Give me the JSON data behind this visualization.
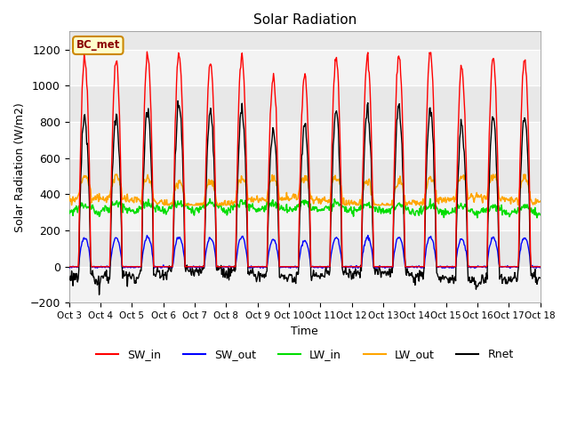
{
  "title": "Solar Radiation",
  "ylabel": "Solar Radiation (W/m2)",
  "xlabel": "Time",
  "ylim": [
    -200,
    1300
  ],
  "yticks": [
    -200,
    0,
    200,
    400,
    600,
    800,
    1000,
    1200
  ],
  "x_tick_labels": [
    "Oct 3",
    "Oct 4",
    "Oct 5",
    "Oct 6",
    "Oct 7",
    "Oct 8",
    "Oct 9",
    "Oct 10",
    "Oct 11",
    "Oct 12",
    "Oct 13",
    "Oct 14",
    "Oct 15",
    "Oct 16",
    "Oct 17",
    "Oct 18"
  ],
  "colors": {
    "SW_in": "#ff0000",
    "SW_out": "#0000ff",
    "LW_in": "#00dd00",
    "LW_out": "#ffa500",
    "Rnet": "#000000"
  },
  "legend_label": "BC_met",
  "legend_bg": "#ffffcc",
  "legend_border": "#cc8800",
  "n_days": 15,
  "bg_color": "#e8e8e8",
  "grid_color": "#ffffff"
}
